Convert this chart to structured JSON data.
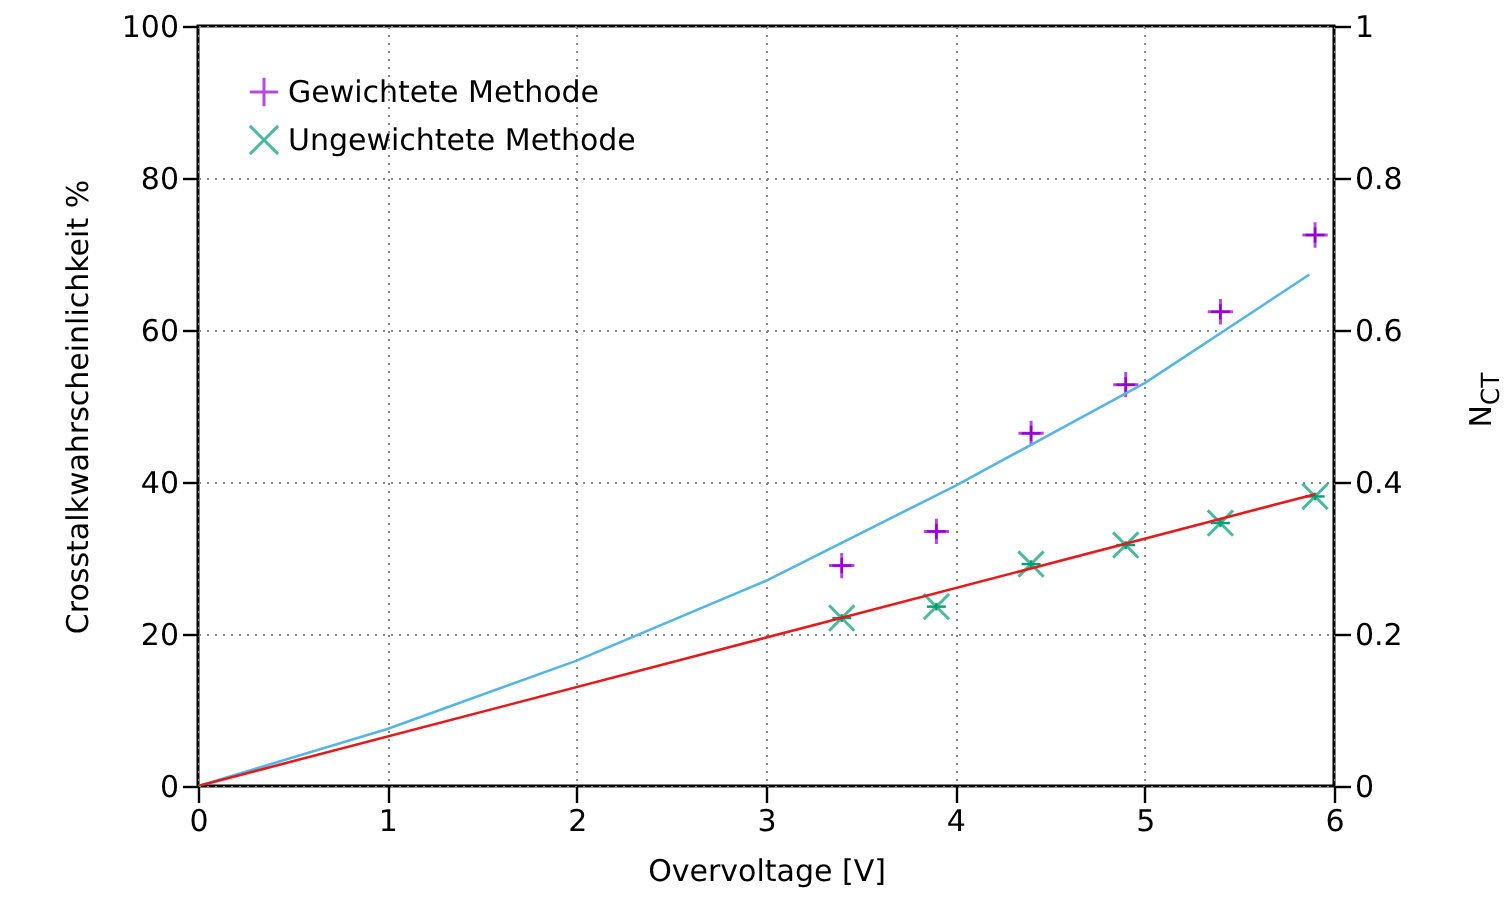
{
  "chart_data": {
    "type": "scatter",
    "xlabel": "Overvoltage [V]",
    "ylabel": "Crosstalkwahrscheinlichkeit %",
    "y2label": "N$_{CT}$",
    "xlim": [
      0,
      6
    ],
    "xticks": [
      0,
      1,
      2,
      3,
      4,
      5,
      6
    ],
    "ylim": [
      0,
      100
    ],
    "yticks": [
      0,
      20,
      40,
      60,
      80,
      100
    ],
    "y2lim": [
      0,
      1
    ],
    "y2ticks": [
      0,
      0.2,
      0.4,
      0.6,
      0.8,
      1
    ],
    "grid": true,
    "legend": "top left",
    "series": [
      {
        "name": "Gewichtete Methode",
        "type": "scatter",
        "marker": "cross",
        "color": "#9400d3",
        "x": [
          3.4,
          3.9,
          4.4,
          4.9,
          5.4,
          5.9
        ],
        "values": [
          29.0,
          33.5,
          46.4,
          52.8,
          62.4,
          72.5
        ],
        "errors": [
          1,
          1,
          1,
          1,
          1,
          1
        ],
        "xerrors": [
          0.05,
          0.05,
          0.05,
          0.05,
          0.05,
          0.05
        ]
      },
      {
        "name": "Ungewichtete Methode",
        "type": "scatter",
        "marker": "x",
        "color": "#009e73",
        "x": [
          3.4,
          3.9,
          4.4,
          4.9,
          5.4,
          5.9
        ],
        "values": [
          22.1,
          23.6,
          29.2,
          31.7,
          34.6,
          38.1
        ],
        "errors": [
          0.5,
          0.5,
          0.5,
          0.5,
          0.5,
          0.5
        ],
        "xerrors": [
          0.05,
          0.05,
          0.05,
          0.05,
          0.05,
          0.05
        ]
      },
      {
        "type": "line",
        "color": "#56b4e9",
        "x": [
          0,
          1,
          2,
          3,
          4,
          5,
          5.87
        ],
        "values": [
          0,
          7.5,
          16.5,
          27,
          39.5,
          53,
          67.3
        ]
      },
      {
        "type": "line",
        "color": "#e41a1c",
        "x": [
          0,
          5.9
        ],
        "values": [
          0,
          38.4
        ]
      }
    ]
  }
}
